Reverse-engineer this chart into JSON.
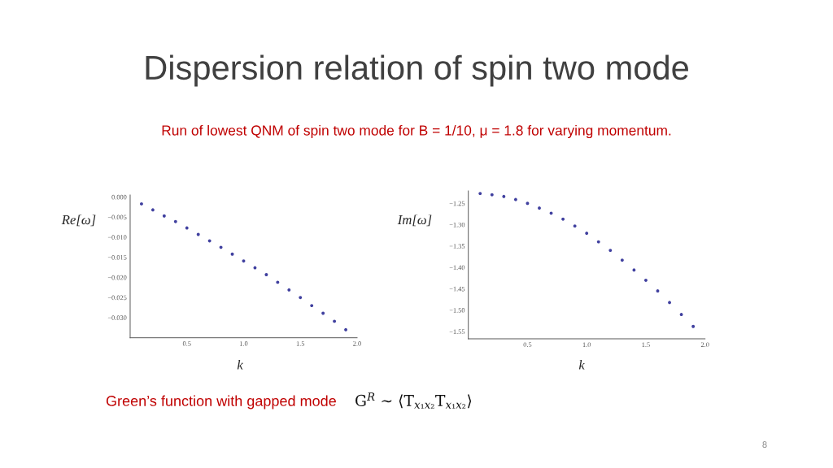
{
  "chart_data": [
    {
      "type": "scatter",
      "title": "Dispersion relation of spin two mode",
      "subtitle": "Run of lowest QNM of spin two mode for B = 1/10, μ = 1.8 for varying momentum.",
      "annotations": [
        "Green’s function with gapped mode",
        "G$^{R}$ ∼ ⟨T$_{x₁x₂}$T$_{x₁x₂}$⟩",
        "8"
      ],
      "xlabel": "k",
      "ylabel": "Re[ω]",
      "marker": "circle",
      "color": "#40409f",
      "x": [
        0.1,
        0.2,
        0.3,
        0.4,
        0.5,
        0.6,
        0.7,
        0.8,
        0.9,
        1.0,
        1.1,
        1.2,
        1.3,
        1.4,
        1.5,
        1.6,
        1.7,
        1.8,
        1.9
      ],
      "values": [
        -0.0017,
        -0.0032,
        -0.0047,
        -0.0061,
        -0.0077,
        -0.0093,
        -0.0109,
        -0.0125,
        -0.0142,
        -0.0159,
        -0.0176,
        -0.0193,
        -0.0212,
        -0.0231,
        -0.025,
        -0.027,
        -0.0289,
        -0.0309,
        -0.033
      ],
      "xlim": [
        0,
        2
      ],
      "xticks": [
        0.5,
        {
          "value": 1,
          "label": "1.0"
        },
        1.5,
        {
          "value": 2,
          "label": "2.0"
        }
      ],
      "ylim": [
        -0.035,
        0.0005
      ],
      "yticks": [
        {
          "value": 0,
          "label": "0.000"
        },
        {
          "value": -0.005,
          "label": "−0.005"
        },
        {
          "value": -0.01,
          "label": "−0.010"
        },
        {
          "value": -0.015,
          "label": "−0.015"
        },
        {
          "value": -0.02,
          "label": "−0.020"
        },
        {
          "value": -0.025,
          "label": "−0.025"
        },
        {
          "value": -0.03,
          "label": "−0.030"
        }
      ]
    },
    {
      "type": "scatter",
      "xlabel": "k",
      "ylabel": "Im[ω]",
      "marker": "circle",
      "color": "#40409f",
      "x": [
        0.1,
        0.2,
        0.3,
        0.4,
        0.5,
        0.6,
        0.7,
        0.8,
        0.9,
        1.0,
        1.1,
        1.2,
        1.3,
        1.4,
        1.5,
        1.6,
        1.7,
        1.8,
        1.9
      ],
      "values": [
        -1.227,
        -1.23,
        -1.234,
        -1.241,
        -1.25,
        -1.261,
        -1.273,
        -1.287,
        -1.303,
        -1.32,
        -1.34,
        -1.36,
        -1.383,
        -1.406,
        -1.43,
        -1.455,
        -1.482,
        -1.51,
        -1.538
      ],
      "xlim": [
        0,
        2
      ],
      "xticks": [
        {
          "value": 0.5,
          "label": "0.5"
        },
        {
          "value": 1.0,
          "label": "1.0"
        },
        {
          "value": 1.5,
          "label": "1.5"
        },
        {
          "value": 2.0,
          "label": "2.0"
        }
      ],
      "ylim": [
        -1.567,
        -1.221
      ],
      "yticks": [
        {
          "value": -1.25,
          "label": "−1.25"
        },
        {
          "value": -1.3,
          "label": "−1.30"
        },
        {
          "value": -1.35,
          "label": "−1.35"
        },
        {
          "value": -1.4,
          "label": "−1.40"
        },
        {
          "value": -1.45,
          "label": "−1.45"
        },
        {
          "value": -1.5,
          "label": "−1.50"
        },
        {
          "value": -1.55,
          "label": "−1.55"
        }
      ]
    }
  ]
}
